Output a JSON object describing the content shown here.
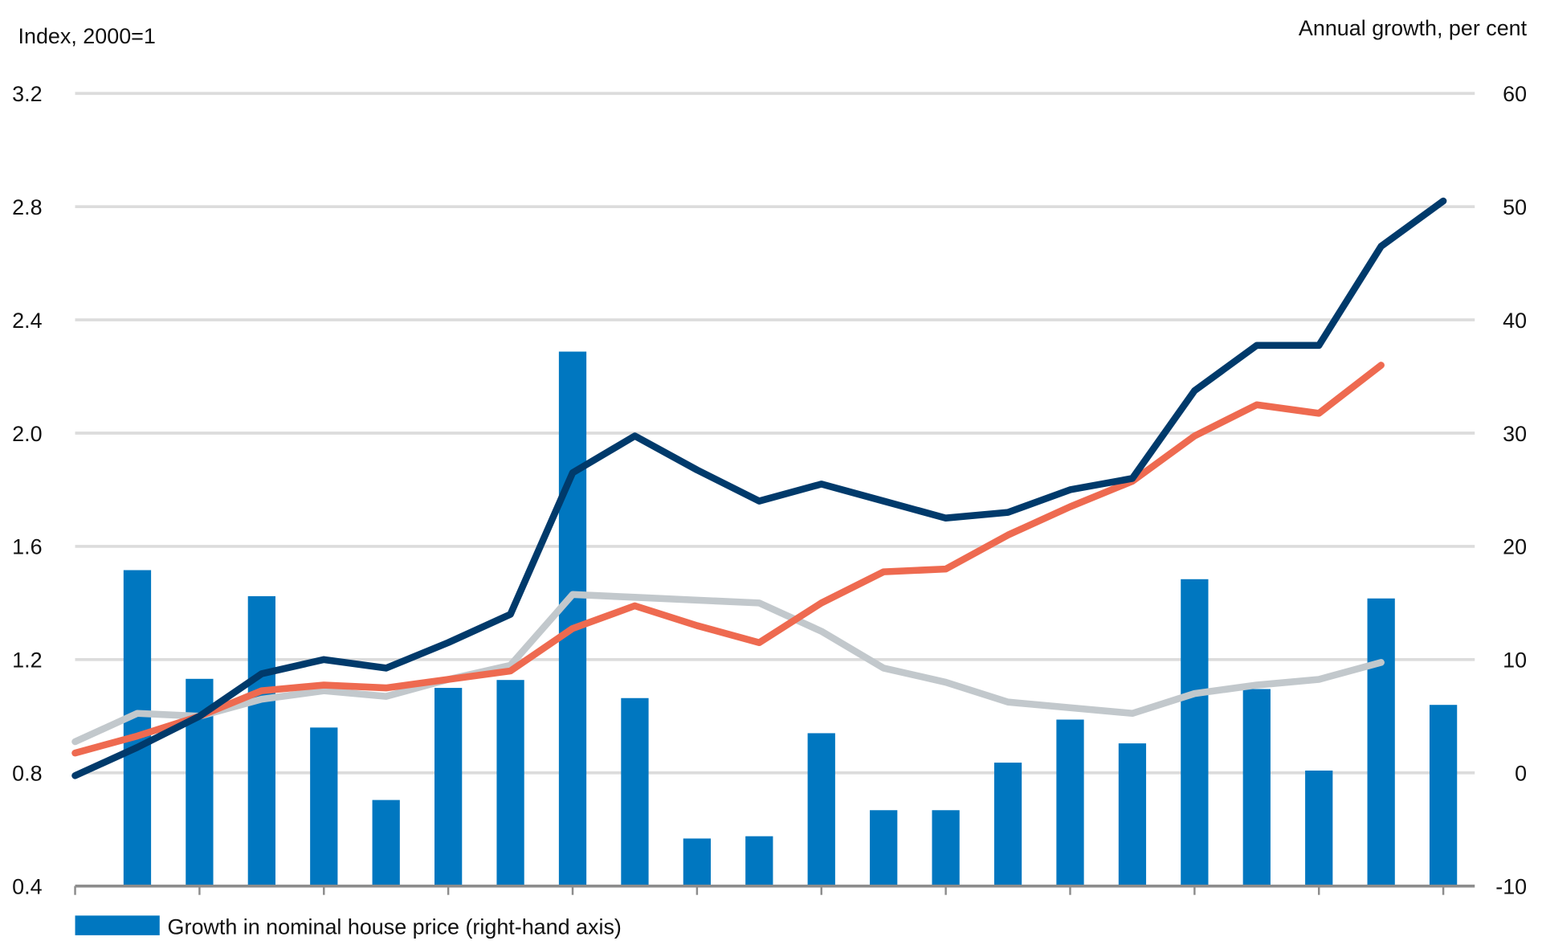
{
  "chart_data": {
    "type": "bar+line",
    "left_axis_label": "Index, 2000=1",
    "right_axis_label": "Annual growth, per cent",
    "left_ylim": [
      0.4,
      3.2
    ],
    "left_ticks": [
      "0.4",
      "0.8",
      "1.2",
      "1.6",
      "2.0",
      "2.4",
      "2.8",
      "3.2"
    ],
    "right_ylim": [
      -10,
      60
    ],
    "right_ticks": [
      "-10",
      "0",
      "10",
      "20",
      "30",
      "40",
      "50",
      "60"
    ],
    "grid": true,
    "legend_position": "bottom-left",
    "bars": {
      "name": "Growth in nominal house price (right-hand axis)",
      "color": "#0077c0",
      "start_index": 1,
      "values": [
        17.9,
        8.3,
        15.6,
        4.0,
        -2.4,
        7.5,
        8.2,
        37.2,
        6.6,
        -5.8,
        -5.6,
        3.5,
        -3.3,
        -3.3,
        0.9,
        4.7,
        2.6,
        17.1,
        7.4,
        0.2,
        15.4,
        6.0
      ]
    },
    "series": [
      {
        "color": "#003a6b",
        "values": [
          0.79,
          0.89,
          1.0,
          1.15,
          1.2,
          1.17,
          1.26,
          1.36,
          1.86,
          1.99,
          1.87,
          1.76,
          1.82,
          1.76,
          1.7,
          1.72,
          1.8,
          1.84,
          2.15,
          2.31,
          2.31,
          2.66,
          2.82
        ]
      },
      {
        "color": "#ee6a50",
        "values": [
          0.87,
          0.93,
          1.0,
          1.09,
          1.11,
          1.1,
          1.13,
          1.16,
          1.31,
          1.39,
          1.32,
          1.26,
          1.4,
          1.51,
          1.52,
          1.64,
          1.74,
          1.83,
          1.99,
          2.1,
          2.07,
          2.24
        ]
      },
      {
        "color": "#c2c8cc",
        "values": [
          0.91,
          1.01,
          1.0,
          1.06,
          1.09,
          1.07,
          1.13,
          1.18,
          1.43,
          1.42,
          1.41,
          1.4,
          1.3,
          1.17,
          1.12,
          1.05,
          1.03,
          1.01,
          1.08,
          1.11,
          1.13,
          1.19
        ]
      }
    ],
    "n_points": 23
  }
}
